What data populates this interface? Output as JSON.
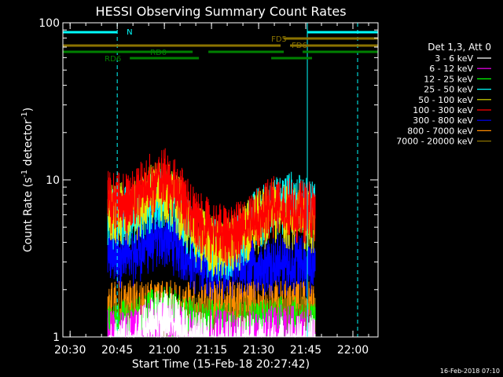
{
  "chart_data": {
    "type": "line",
    "title": "HESSI Observing Summary Count Rates",
    "xlabel": "Start Time (15-Feb-18 20:27:42)",
    "ylabel_main": "Count Rate (s",
    "ylabel_sup1": "-1",
    "ylabel_mid": " detector",
    "ylabel_sup2": "-1",
    "ylabel_end": ")",
    "xlim": [
      "20:27:42",
      "22:08:00"
    ],
    "ylim": [
      1,
      100
    ],
    "yscale": "log",
    "x_ticks": [
      "20:30",
      "20:45",
      "21:00",
      "21:15",
      "21:30",
      "21:45",
      "22:00"
    ],
    "y_ticks": [
      "1",
      "10",
      "100"
    ],
    "legend_header": "Det 1,3, Att 0",
    "legend_position": "right",
    "data_window": [
      "20:42:00",
      "21:48:00"
    ],
    "series": [
      {
        "name": "3 - 6 keV",
        "color": "#ffffff",
        "x": [
          "20:50",
          "20:55",
          "21:00",
          "21:05",
          "21:10",
          "21:15",
          "21:20",
          "21:25",
          "21:30",
          "21:35",
          "21:40",
          "21:45"
        ],
        "values": [
          1.2,
          1.6,
          1.8,
          1.5,
          1.3,
          1.2,
          1.2,
          1.2,
          1.2,
          1.2,
          1.2,
          1.2
        ]
      },
      {
        "name": "6 - 12 keV",
        "color": "#ff00ff",
        "x": [
          "20:50",
          "20:55",
          "21:00",
          "21:05",
          "21:10",
          "21:15",
          "21:20",
          "21:25",
          "21:30",
          "21:35",
          "21:40",
          "21:45"
        ],
        "values": [
          1.3,
          1.5,
          1.6,
          1.4,
          1.3,
          1.3,
          1.3,
          1.3,
          1.3,
          1.4,
          1.4,
          1.3
        ]
      },
      {
        "name": "12 - 25 keV",
        "color": "#00ff00",
        "x": [
          "20:50",
          "20:55",
          "21:00",
          "21:05",
          "21:10",
          "21:15",
          "21:20",
          "21:25",
          "21:30",
          "21:35",
          "21:40",
          "21:45"
        ],
        "values": [
          1.5,
          1.8,
          1.9,
          1.7,
          1.5,
          1.5,
          1.5,
          1.5,
          1.5,
          1.6,
          1.6,
          1.5
        ]
      },
      {
        "name": "25 - 50 keV",
        "color": "#00ffff",
        "x": [
          "20:50",
          "20:55",
          "21:00",
          "21:05",
          "21:10",
          "21:15",
          "21:20",
          "21:25",
          "21:30",
          "21:35",
          "21:40",
          "21:45"
        ],
        "values": [
          8.0,
          10.0,
          11.0,
          8.5,
          6.0,
          5.0,
          5.0,
          6.0,
          8.0,
          9.0,
          10.0,
          9.0
        ]
      },
      {
        "name": "50 - 100 keV",
        "color": "#e6e600",
        "x": [
          "20:50",
          "20:55",
          "21:00",
          "21:05",
          "21:10",
          "21:15",
          "21:20",
          "21:25",
          "21:30",
          "21:35",
          "21:40",
          "21:45"
        ],
        "values": [
          8.5,
          11.0,
          12.0,
          9.0,
          6.0,
          5.2,
          5.0,
          6.0,
          7.5,
          8.5,
          8.0,
          7.5
        ]
      },
      {
        "name": "100 - 300 keV",
        "color": "#ff0000",
        "x": [
          "20:50",
          "20:55",
          "21:00",
          "21:05",
          "21:10",
          "21:15",
          "21:20",
          "21:25",
          "21:30",
          "21:35",
          "21:40",
          "21:45"
        ],
        "values": [
          10.0,
          13.0,
          14.0,
          11.0,
          7.5,
          6.5,
          6.0,
          6.5,
          8.0,
          9.5,
          9.0,
          8.5
        ]
      },
      {
        "name": "300 - 800 keV",
        "color": "#0000ff",
        "x": [
          "20:50",
          "20:55",
          "21:00",
          "21:05",
          "21:10",
          "21:15",
          "21:20",
          "21:25",
          "21:30",
          "21:35",
          "21:40",
          "21:45"
        ],
        "values": [
          4.5,
          5.5,
          6.0,
          5.0,
          4.0,
          3.8,
          3.8,
          3.8,
          3.8,
          4.0,
          4.0,
          3.9
        ]
      },
      {
        "name": "800 - 7000 keV",
        "color": "#ff8c00",
        "x": [
          "20:50",
          "20:55",
          "21:00",
          "21:05",
          "21:10",
          "21:15",
          "21:20",
          "21:25",
          "21:30",
          "21:35",
          "21:40",
          "21:45"
        ],
        "values": [
          2.0,
          2.0,
          2.0,
          2.0,
          2.0,
          2.0,
          2.0,
          2.0,
          2.0,
          2.0,
          2.0,
          2.0
        ]
      },
      {
        "name": "7000 - 20000 keV",
        "color": "#8b7300",
        "x": [
          "20:50",
          "20:55",
          "21:00",
          "21:05",
          "21:10",
          "21:15",
          "21:20",
          "21:25",
          "21:30",
          "21:35",
          "21:40",
          "21:45"
        ],
        "values": [
          1.6,
          1.6,
          1.7,
          1.6,
          1.6,
          1.6,
          1.6,
          1.6,
          1.6,
          1.6,
          1.6,
          1.6
        ]
      }
    ],
    "flag_bars": [
      {
        "label": "N",
        "color": "#00ffff",
        "y_label_offset": 0,
        "segments": [
          [
            "20:27:42",
            "20:45:00"
          ],
          [
            "21:45:30",
            "22:08:00"
          ]
        ]
      },
      {
        "label": "FD5",
        "color": "#8b7300",
        "segments": [
          [
            "21:38:00",
            "22:08:00"
          ]
        ]
      },
      {
        "label": "FD6",
        "color": "#8b7300",
        "segments": [
          [
            "20:27:42",
            "21:37:00"
          ],
          [
            "21:40:00",
            "22:08:00"
          ]
        ]
      },
      {
        "label": "RD0",
        "color": "#008000",
        "segments": [
          [
            "20:27:42",
            "21:09:00"
          ],
          [
            "21:14:00",
            "21:38:00"
          ],
          [
            "21:44:00",
            "22:08:00"
          ]
        ]
      },
      {
        "label": "RD6",
        "color": "#008000",
        "segments": [
          [
            "20:49:00",
            "21:11:00"
          ],
          [
            "21:34:00",
            "21:47:00"
          ]
        ]
      }
    ],
    "vlines": [
      {
        "x": "20:45:00",
        "color": "#00ffff",
        "style": "dashed"
      },
      {
        "x": "22:01:30",
        "color": "#00ffff",
        "style": "dashed"
      },
      {
        "x": "21:45:30",
        "color": "#00ffff",
        "style": "solid"
      },
      {
        "x": "20:27:42",
        "color": "#00ffff",
        "style": "solid"
      }
    ]
  },
  "footer_timestamp": "16-Feb-2018 07:10"
}
